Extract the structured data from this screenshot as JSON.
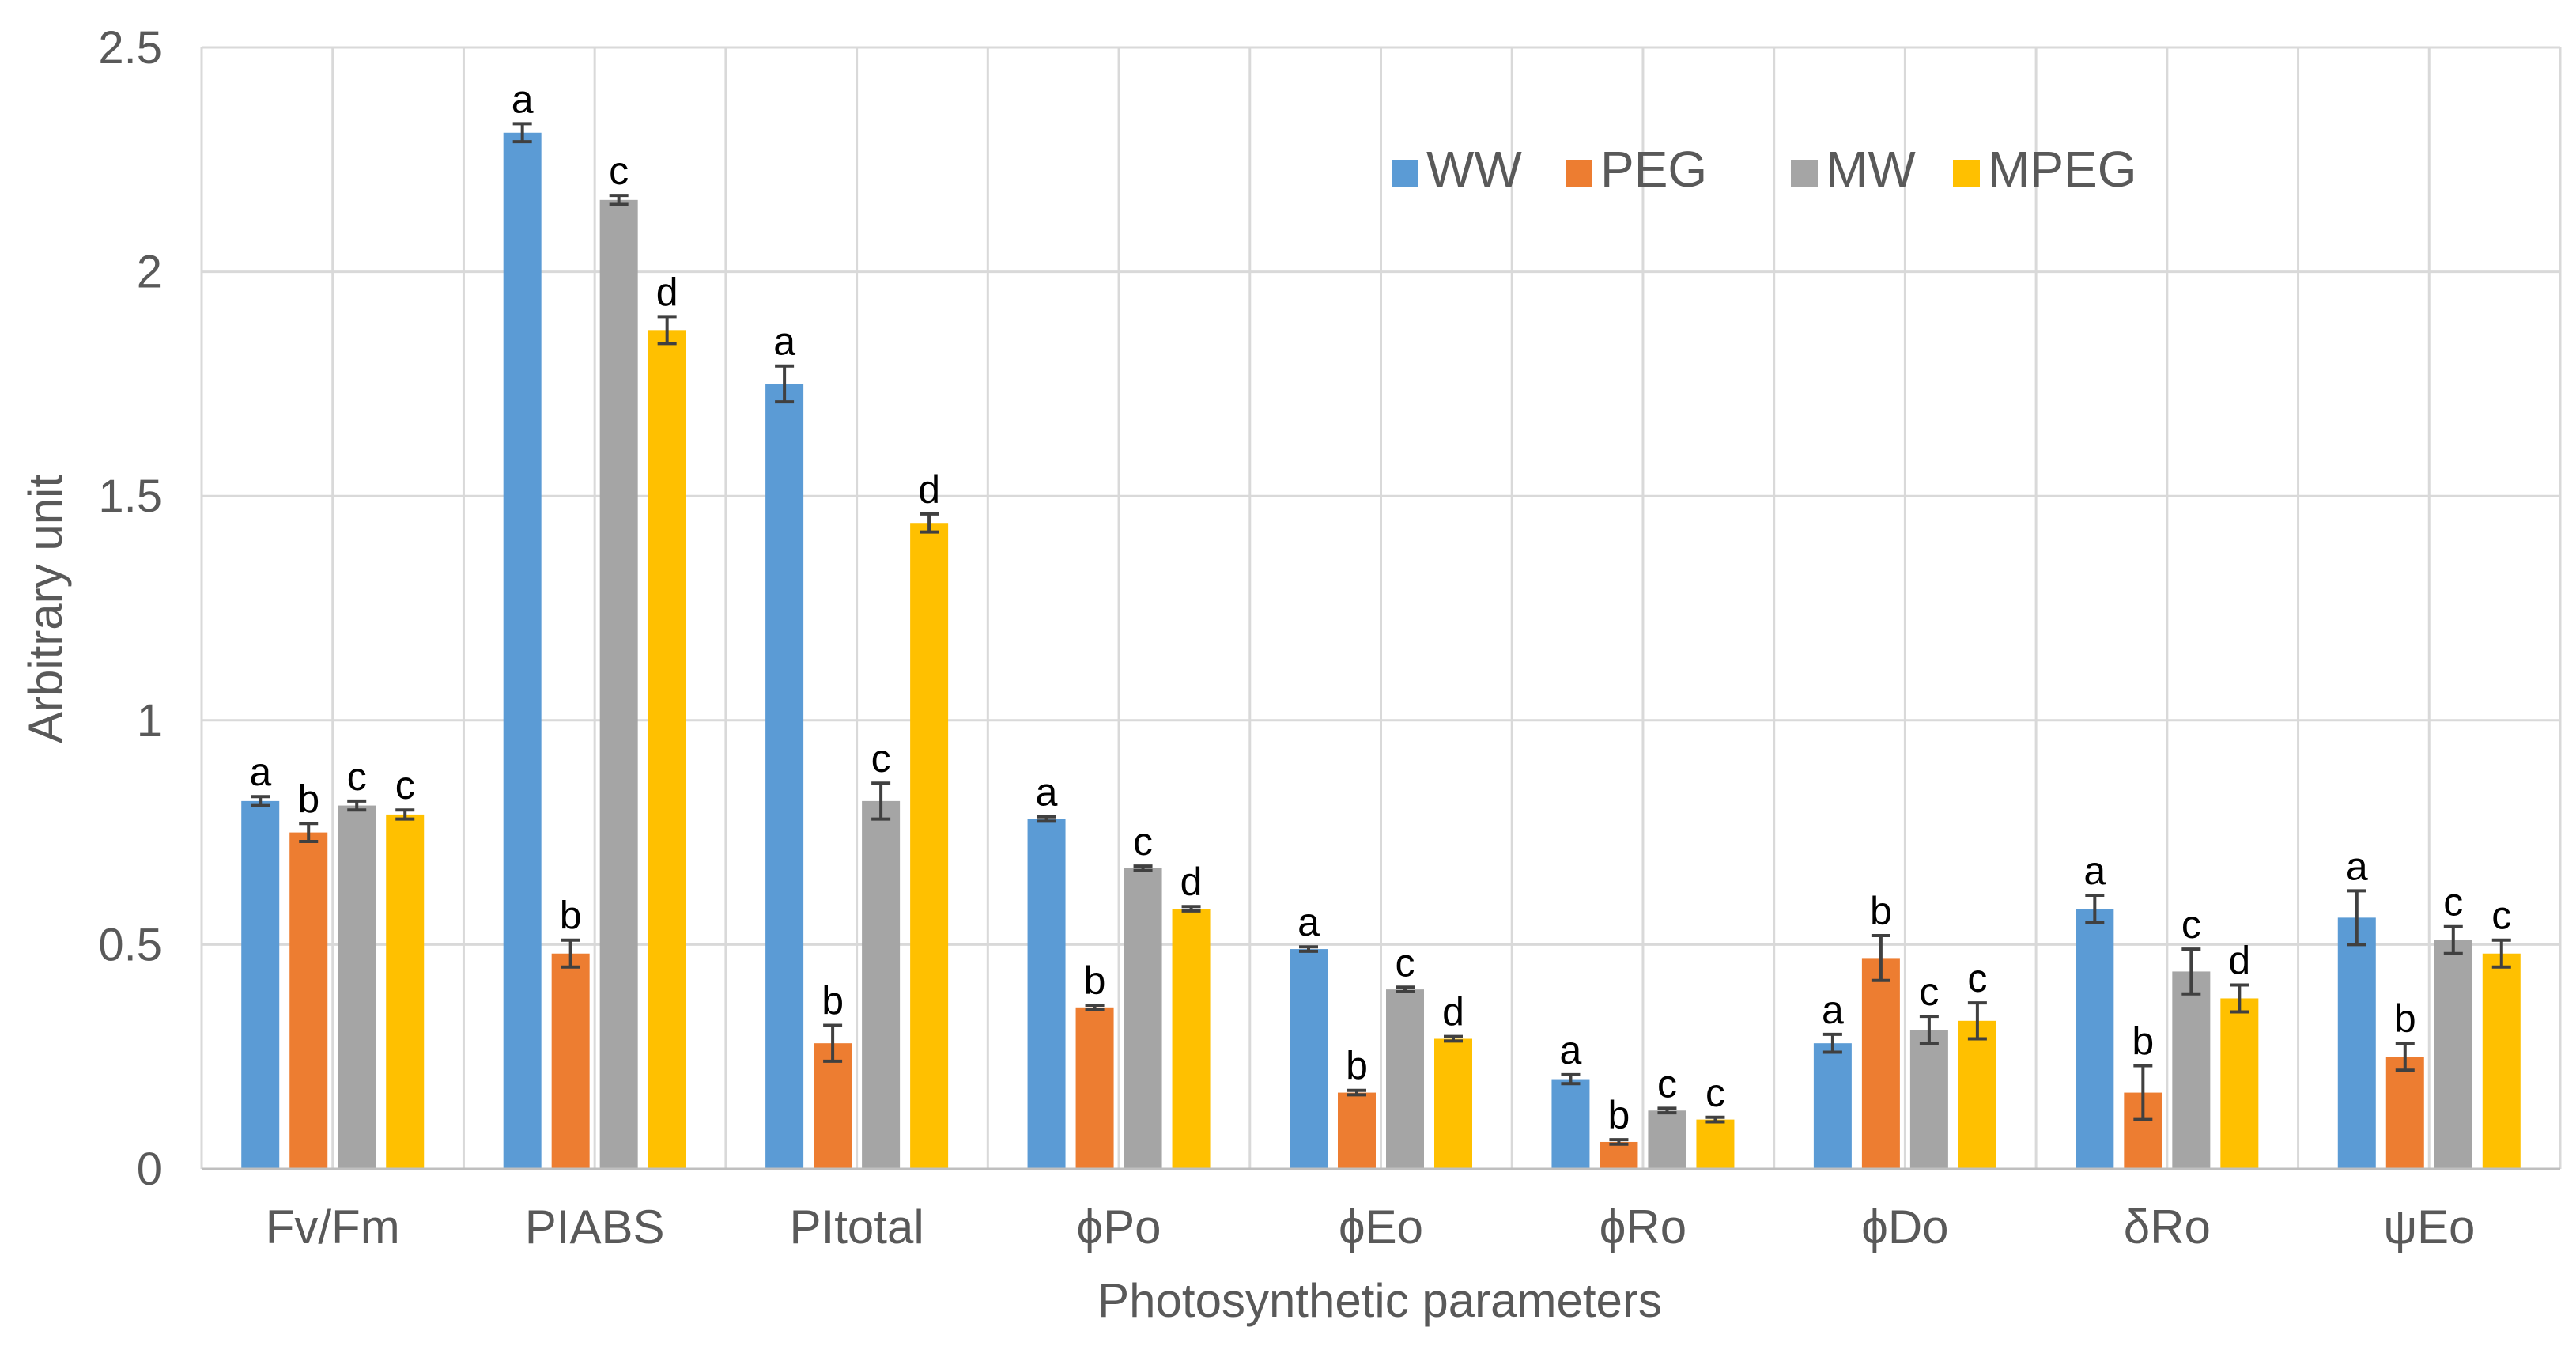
{
  "chart_data": {
    "type": "bar",
    "title": "",
    "xlabel": "Photosynthetic parameters",
    "ylabel": "Arbitrary unit",
    "ylim": [
      0,
      2.5
    ],
    "yticks": [
      {
        "value": 0,
        "label": "0"
      },
      {
        "value": 0.5,
        "label": "0.5"
      },
      {
        "value": 1,
        "label": "1"
      },
      {
        "value": 1.5,
        "label": "1.5"
      },
      {
        "value": 2,
        "label": "2"
      },
      {
        "value": 2.5,
        "label": "2.5"
      }
    ],
    "grid": true,
    "legend_position": "top-right",
    "categories": [
      "Fv/Fm",
      "PIABS",
      "PItotal",
      "ϕPo",
      "ϕEo",
      "ϕRo",
      "ϕDo",
      "δRo",
      "ψEo"
    ],
    "series": [
      {
        "name": "WW",
        "color": "#5B9BD5",
        "values": [
          0.82,
          2.31,
          1.75,
          0.78,
          0.49,
          0.2,
          0.28,
          0.58,
          0.56
        ],
        "errors": [
          0.01,
          0.02,
          0.04,
          0.005,
          0.005,
          0.01,
          0.02,
          0.03,
          0.06
        ],
        "letters": [
          "a",
          "a",
          "a",
          "a",
          "a",
          "a",
          "a",
          "a",
          "a"
        ]
      },
      {
        "name": "PEG",
        "color": "#ED7D31",
        "values": [
          0.75,
          0.48,
          0.28,
          0.36,
          0.17,
          0.06,
          0.47,
          0.17,
          0.25
        ],
        "errors": [
          0.02,
          0.03,
          0.04,
          0.005,
          0.005,
          0.005,
          0.05,
          0.06,
          0.03
        ],
        "letters": [
          "b",
          "b",
          "b",
          "b",
          "b",
          "b",
          "b",
          "b",
          "b"
        ]
      },
      {
        "name": "MW",
        "color": "#A5A5A5",
        "values": [
          0.81,
          2.16,
          0.82,
          0.67,
          0.4,
          0.13,
          0.31,
          0.44,
          0.51
        ],
        "errors": [
          0.01,
          0.01,
          0.04,
          0.005,
          0.005,
          0.005,
          0.03,
          0.05,
          0.03
        ],
        "letters": [
          "c",
          "c",
          "c",
          "c",
          "c",
          "c",
          "c",
          "c",
          "c"
        ]
      },
      {
        "name": "MPEG",
        "color": "#FFC000",
        "values": [
          0.79,
          1.87,
          1.44,
          0.58,
          0.29,
          0.11,
          0.33,
          0.38,
          0.48
        ],
        "errors": [
          0.01,
          0.03,
          0.02,
          0.005,
          0.005,
          0.005,
          0.04,
          0.03,
          0.03
        ],
        "letters": [
          "c",
          "d",
          "d",
          "d",
          "d",
          "c",
          "c",
          "d",
          "c"
        ]
      }
    ]
  }
}
